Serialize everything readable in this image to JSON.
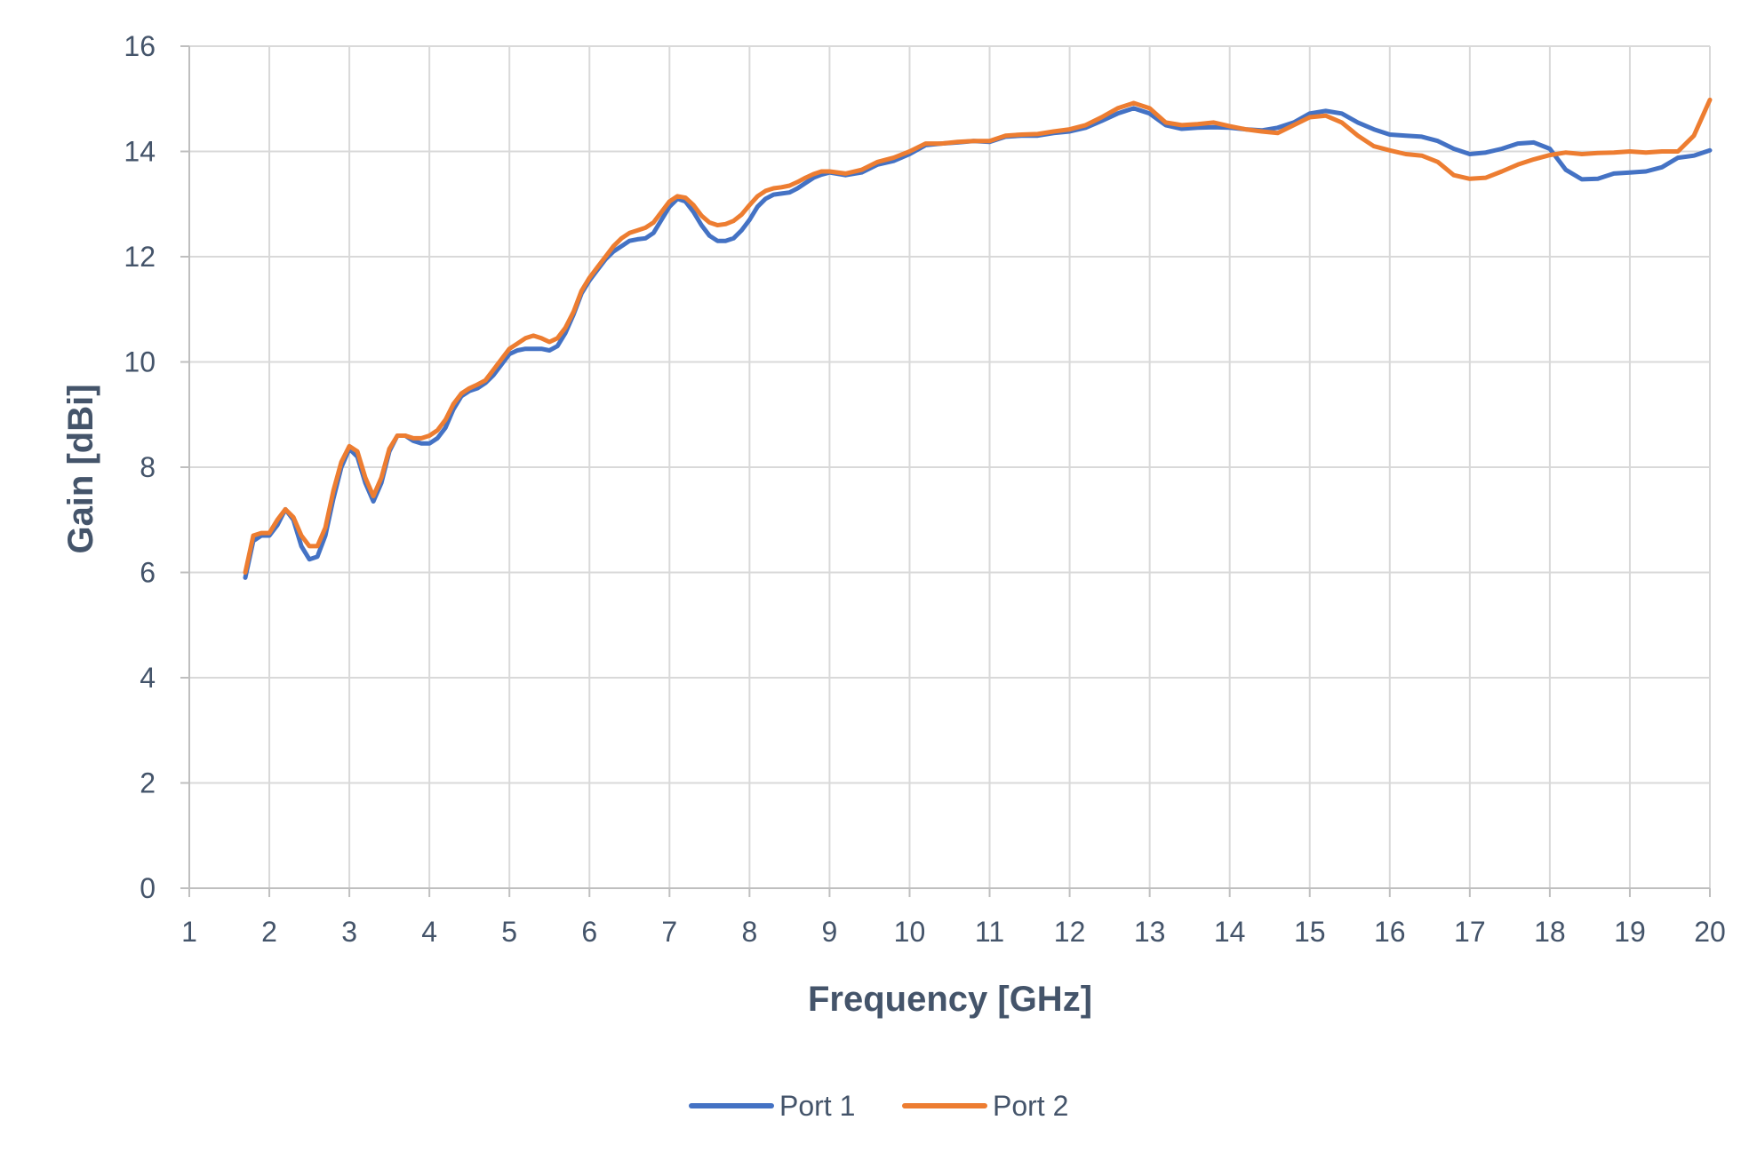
{
  "chart_data": {
    "type": "line",
    "title": "",
    "xlabel": "Frequency [GHz]",
    "ylabel": "Gain [dBi]",
    "xlim": [
      1,
      20
    ],
    "ylim": [
      0,
      16
    ],
    "x_ticks": [
      1,
      2,
      3,
      4,
      5,
      6,
      7,
      8,
      9,
      10,
      11,
      12,
      13,
      14,
      15,
      16,
      17,
      18,
      19,
      20
    ],
    "y_ticks": [
      0,
      2,
      4,
      6,
      8,
      10,
      12,
      14,
      16
    ],
    "grid": true,
    "legend_position": "bottom",
    "series": [
      {
        "name": "Port 1",
        "color": "#4472c4",
        "points": [
          [
            1.7,
            5.9
          ],
          [
            1.8,
            6.6
          ],
          [
            1.9,
            6.7
          ],
          [
            2.0,
            6.7
          ],
          [
            2.1,
            6.9
          ],
          [
            2.2,
            7.2
          ],
          [
            2.3,
            7.0
          ],
          [
            2.4,
            6.5
          ],
          [
            2.5,
            6.25
          ],
          [
            2.6,
            6.3
          ],
          [
            2.7,
            6.7
          ],
          [
            2.8,
            7.4
          ],
          [
            2.9,
            8.0
          ],
          [
            3.0,
            8.35
          ],
          [
            3.1,
            8.2
          ],
          [
            3.2,
            7.7
          ],
          [
            3.3,
            7.35
          ],
          [
            3.4,
            7.7
          ],
          [
            3.5,
            8.3
          ],
          [
            3.6,
            8.6
          ],
          [
            3.7,
            8.6
          ],
          [
            3.8,
            8.5
          ],
          [
            3.9,
            8.45
          ],
          [
            4.0,
            8.45
          ],
          [
            4.1,
            8.55
          ],
          [
            4.2,
            8.75
          ],
          [
            4.3,
            9.1
          ],
          [
            4.4,
            9.35
          ],
          [
            4.5,
            9.45
          ],
          [
            4.6,
            9.5
          ],
          [
            4.7,
            9.6
          ],
          [
            4.8,
            9.75
          ],
          [
            4.9,
            9.95
          ],
          [
            5.0,
            10.15
          ],
          [
            5.1,
            10.22
          ],
          [
            5.2,
            10.25
          ],
          [
            5.3,
            10.25
          ],
          [
            5.4,
            10.25
          ],
          [
            5.5,
            10.22
          ],
          [
            5.6,
            10.3
          ],
          [
            5.7,
            10.55
          ],
          [
            5.8,
            10.9
          ],
          [
            5.9,
            11.3
          ],
          [
            6.0,
            11.55
          ],
          [
            6.1,
            11.75
          ],
          [
            6.2,
            11.95
          ],
          [
            6.3,
            12.1
          ],
          [
            6.4,
            12.2
          ],
          [
            6.5,
            12.3
          ],
          [
            6.6,
            12.33
          ],
          [
            6.7,
            12.35
          ],
          [
            6.8,
            12.45
          ],
          [
            6.9,
            12.7
          ],
          [
            7.0,
            12.95
          ],
          [
            7.1,
            13.1
          ],
          [
            7.2,
            13.05
          ],
          [
            7.3,
            12.85
          ],
          [
            7.4,
            12.6
          ],
          [
            7.5,
            12.4
          ],
          [
            7.6,
            12.3
          ],
          [
            7.7,
            12.3
          ],
          [
            7.8,
            12.35
          ],
          [
            7.9,
            12.5
          ],
          [
            8.0,
            12.7
          ],
          [
            8.1,
            12.95
          ],
          [
            8.2,
            13.1
          ],
          [
            8.3,
            13.18
          ],
          [
            8.4,
            13.2
          ],
          [
            8.5,
            13.22
          ],
          [
            8.6,
            13.3
          ],
          [
            8.7,
            13.4
          ],
          [
            8.8,
            13.5
          ],
          [
            8.9,
            13.56
          ],
          [
            9.0,
            13.6
          ],
          [
            9.2,
            13.55
          ],
          [
            9.4,
            13.6
          ],
          [
            9.6,
            13.75
          ],
          [
            9.8,
            13.82
          ],
          [
            10.0,
            13.95
          ],
          [
            10.2,
            14.12
          ],
          [
            10.4,
            14.15
          ],
          [
            10.6,
            14.17
          ],
          [
            10.8,
            14.2
          ],
          [
            11.0,
            14.18
          ],
          [
            11.2,
            14.28
          ],
          [
            11.4,
            14.3
          ],
          [
            11.6,
            14.3
          ],
          [
            11.8,
            14.35
          ],
          [
            12.0,
            14.38
          ],
          [
            12.2,
            14.45
          ],
          [
            12.4,
            14.58
          ],
          [
            12.6,
            14.72
          ],
          [
            12.8,
            14.82
          ],
          [
            13.0,
            14.72
          ],
          [
            13.2,
            14.5
          ],
          [
            13.4,
            14.43
          ],
          [
            13.6,
            14.45
          ],
          [
            13.8,
            14.46
          ],
          [
            14.0,
            14.45
          ],
          [
            14.2,
            14.42
          ],
          [
            14.4,
            14.4
          ],
          [
            14.6,
            14.45
          ],
          [
            14.8,
            14.55
          ],
          [
            15.0,
            14.72
          ],
          [
            15.2,
            14.77
          ],
          [
            15.4,
            14.72
          ],
          [
            15.6,
            14.55
          ],
          [
            15.8,
            14.42
          ],
          [
            16.0,
            14.32
          ],
          [
            16.2,
            14.3
          ],
          [
            16.4,
            14.28
          ],
          [
            16.6,
            14.2
          ],
          [
            16.8,
            14.05
          ],
          [
            17.0,
            13.95
          ],
          [
            17.2,
            13.98
          ],
          [
            17.4,
            14.05
          ],
          [
            17.6,
            14.15
          ],
          [
            17.8,
            14.17
          ],
          [
            18.0,
            14.05
          ],
          [
            18.2,
            13.65
          ],
          [
            18.4,
            13.47
          ],
          [
            18.6,
            13.48
          ],
          [
            18.8,
            13.58
          ],
          [
            19.0,
            13.6
          ],
          [
            19.2,
            13.62
          ],
          [
            19.4,
            13.7
          ],
          [
            19.6,
            13.88
          ],
          [
            19.8,
            13.92
          ],
          [
            20.0,
            14.02
          ]
        ]
      },
      {
        "name": "Port 2",
        "color": "#ed7d31",
        "points": [
          [
            1.7,
            6.0
          ],
          [
            1.8,
            6.7
          ],
          [
            1.9,
            6.75
          ],
          [
            2.0,
            6.75
          ],
          [
            2.1,
            7.0
          ],
          [
            2.2,
            7.2
          ],
          [
            2.3,
            7.05
          ],
          [
            2.4,
            6.7
          ],
          [
            2.5,
            6.5
          ],
          [
            2.6,
            6.5
          ],
          [
            2.7,
            6.85
          ],
          [
            2.8,
            7.55
          ],
          [
            2.9,
            8.1
          ],
          [
            3.0,
            8.4
          ],
          [
            3.1,
            8.3
          ],
          [
            3.2,
            7.8
          ],
          [
            3.3,
            7.45
          ],
          [
            3.4,
            7.8
          ],
          [
            3.5,
            8.35
          ],
          [
            3.6,
            8.6
          ],
          [
            3.7,
            8.6
          ],
          [
            3.8,
            8.55
          ],
          [
            3.9,
            8.55
          ],
          [
            4.0,
            8.6
          ],
          [
            4.1,
            8.7
          ],
          [
            4.2,
            8.9
          ],
          [
            4.3,
            9.2
          ],
          [
            4.4,
            9.4
          ],
          [
            4.5,
            9.5
          ],
          [
            4.6,
            9.57
          ],
          [
            4.7,
            9.65
          ],
          [
            4.8,
            9.85
          ],
          [
            4.9,
            10.05
          ],
          [
            5.0,
            10.25
          ],
          [
            5.1,
            10.35
          ],
          [
            5.2,
            10.45
          ],
          [
            5.3,
            10.5
          ],
          [
            5.4,
            10.45
          ],
          [
            5.5,
            10.38
          ],
          [
            5.6,
            10.45
          ],
          [
            5.7,
            10.65
          ],
          [
            5.8,
            10.95
          ],
          [
            5.9,
            11.35
          ],
          [
            6.0,
            11.6
          ],
          [
            6.1,
            11.8
          ],
          [
            6.2,
            12.0
          ],
          [
            6.3,
            12.2
          ],
          [
            6.4,
            12.35
          ],
          [
            6.5,
            12.45
          ],
          [
            6.6,
            12.5
          ],
          [
            6.7,
            12.55
          ],
          [
            6.8,
            12.65
          ],
          [
            6.9,
            12.85
          ],
          [
            7.0,
            13.05
          ],
          [
            7.1,
            13.15
          ],
          [
            7.2,
            13.12
          ],
          [
            7.3,
            12.98
          ],
          [
            7.4,
            12.78
          ],
          [
            7.5,
            12.65
          ],
          [
            7.6,
            12.6
          ],
          [
            7.7,
            12.62
          ],
          [
            7.8,
            12.68
          ],
          [
            7.9,
            12.8
          ],
          [
            8.0,
            12.98
          ],
          [
            8.1,
            13.15
          ],
          [
            8.2,
            13.25
          ],
          [
            8.3,
            13.3
          ],
          [
            8.4,
            13.32
          ],
          [
            8.5,
            13.35
          ],
          [
            8.6,
            13.42
          ],
          [
            8.7,
            13.5
          ],
          [
            8.8,
            13.57
          ],
          [
            8.9,
            13.62
          ],
          [
            9.0,
            13.62
          ],
          [
            9.2,
            13.58
          ],
          [
            9.4,
            13.65
          ],
          [
            9.6,
            13.8
          ],
          [
            9.8,
            13.88
          ],
          [
            10.0,
            14.0
          ],
          [
            10.2,
            14.15
          ],
          [
            10.4,
            14.15
          ],
          [
            10.6,
            14.18
          ],
          [
            10.8,
            14.2
          ],
          [
            11.0,
            14.2
          ],
          [
            11.2,
            14.3
          ],
          [
            11.4,
            14.32
          ],
          [
            11.6,
            14.33
          ],
          [
            11.8,
            14.38
          ],
          [
            12.0,
            14.42
          ],
          [
            12.2,
            14.5
          ],
          [
            12.4,
            14.65
          ],
          [
            12.6,
            14.82
          ],
          [
            12.8,
            14.92
          ],
          [
            13.0,
            14.82
          ],
          [
            13.2,
            14.55
          ],
          [
            13.4,
            14.5
          ],
          [
            13.6,
            14.52
          ],
          [
            13.8,
            14.55
          ],
          [
            14.0,
            14.48
          ],
          [
            14.2,
            14.42
          ],
          [
            14.4,
            14.38
          ],
          [
            14.6,
            14.35
          ],
          [
            14.8,
            14.5
          ],
          [
            15.0,
            14.65
          ],
          [
            15.2,
            14.68
          ],
          [
            15.4,
            14.55
          ],
          [
            15.6,
            14.3
          ],
          [
            15.8,
            14.1
          ],
          [
            16.0,
            14.02
          ],
          [
            16.2,
            13.95
          ],
          [
            16.4,
            13.92
          ],
          [
            16.6,
            13.8
          ],
          [
            16.8,
            13.55
          ],
          [
            17.0,
            13.48
          ],
          [
            17.2,
            13.5
          ],
          [
            17.4,
            13.62
          ],
          [
            17.6,
            13.75
          ],
          [
            17.8,
            13.85
          ],
          [
            18.0,
            13.93
          ],
          [
            18.2,
            13.98
          ],
          [
            18.4,
            13.95
          ],
          [
            18.6,
            13.97
          ],
          [
            18.8,
            13.98
          ],
          [
            19.0,
            14.0
          ],
          [
            19.2,
            13.98
          ],
          [
            19.4,
            14.0
          ],
          [
            19.6,
            14.0
          ],
          [
            19.8,
            14.3
          ],
          [
            20.0,
            14.98
          ]
        ]
      }
    ]
  }
}
